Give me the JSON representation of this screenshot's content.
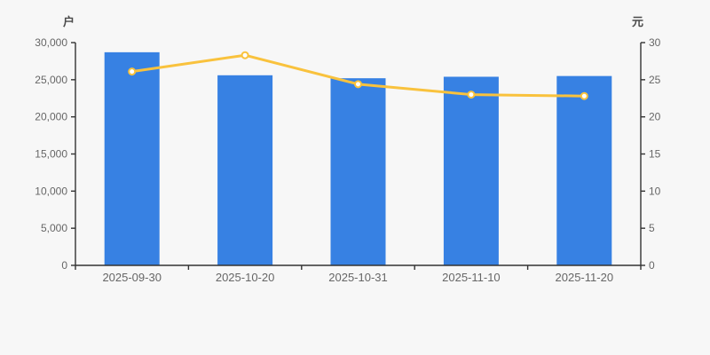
{
  "colors": {
    "background": "#f7f7f7",
    "bar": "#3781e3",
    "line": "#f9c23d",
    "marker_fill": "#ffffff",
    "axis": "#333333",
    "tick_label": "#666666",
    "unit_label": "#4a4a4a"
  },
  "chart_data": {
    "type": "combo",
    "categories": [
      "2025-09-30",
      "2025-10-20",
      "2025-10-31",
      "2025-11-10",
      "2025-11-20"
    ],
    "series": [
      {
        "name": "bar-series",
        "type": "bar",
        "axis": "left",
        "unit": "户",
        "values": [
          28700,
          25600,
          25200,
          25400,
          25500
        ]
      },
      {
        "name": "line-series",
        "type": "line",
        "axis": "right",
        "unit": "元",
        "values": [
          26.1,
          28.3,
          24.4,
          23.0,
          22.8
        ]
      }
    ],
    "left_axis": {
      "label": "户",
      "min": 0,
      "max": 30000,
      "tick_values": [
        0,
        5000,
        10000,
        15000,
        20000,
        25000,
        30000
      ],
      "tick_labels": [
        "0",
        "5,000",
        "10,000",
        "15,000",
        "20,000",
        "25,000",
        "30,000"
      ]
    },
    "right_axis": {
      "label": "元",
      "min": 0,
      "max": 30,
      "tick_values": [
        0,
        5,
        10,
        15,
        20,
        25,
        30
      ],
      "tick_labels": [
        "0",
        "5",
        "10",
        "15",
        "20",
        "25",
        "30"
      ]
    },
    "title": "",
    "legend": [],
    "grid": false
  }
}
